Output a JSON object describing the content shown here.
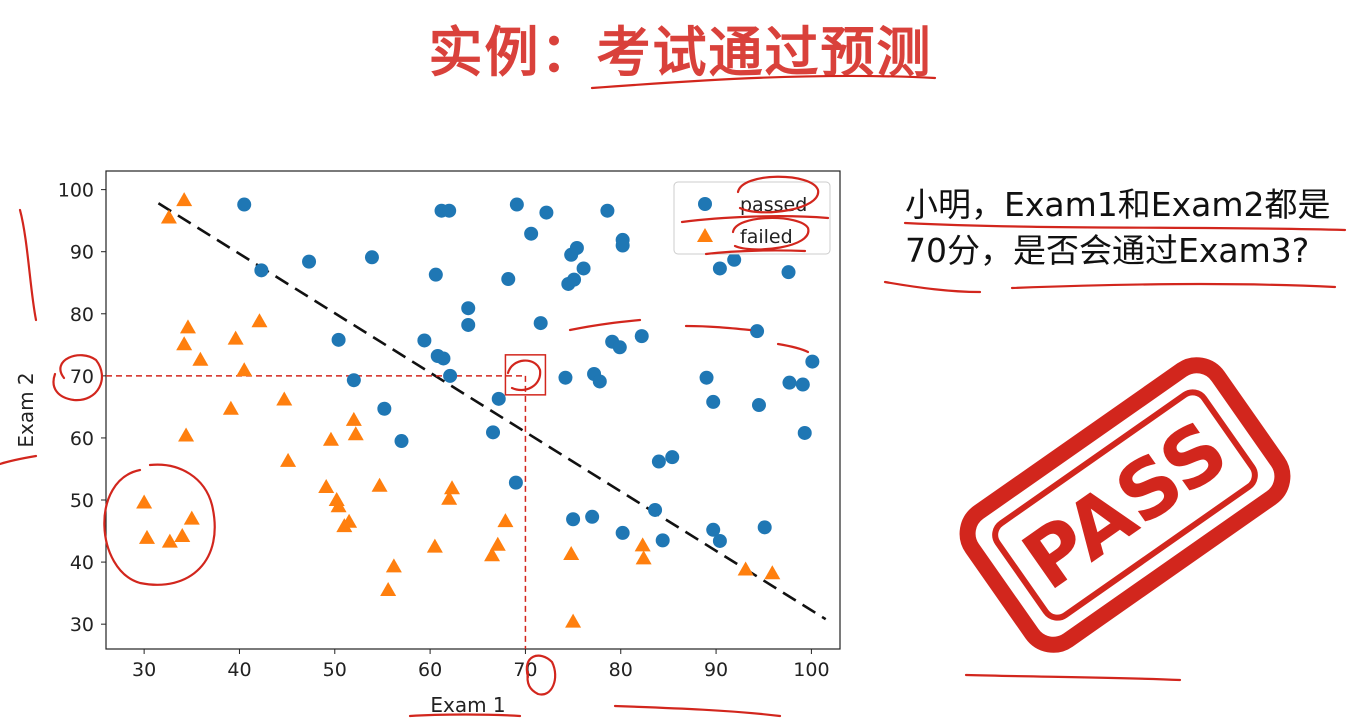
{
  "slide": {
    "title": "实例：考试通过预测",
    "question": "小明，Exam1和Exam2都是70分，是否会通过Exam3?",
    "stamp_text": "PASS",
    "colors": {
      "title": "#d9413b",
      "annotation": "#d2261d",
      "passed": "#1f77b4",
      "failed": "#ff7f0e"
    }
  },
  "chart_data": {
    "type": "scatter",
    "xlabel": "Exam 1",
    "ylabel": "Exam 2",
    "xlim": [
      26,
      103
    ],
    "ylim": [
      26,
      103
    ],
    "xticks": [
      30,
      40,
      50,
      60,
      70,
      80,
      90,
      100
    ],
    "yticks": [
      30,
      40,
      50,
      60,
      70,
      80,
      90,
      100
    ],
    "legend": {
      "placement": "top-right"
    },
    "grid": false,
    "decision_boundary": {
      "from": [
        31.5,
        97.8
      ],
      "to": [
        101.5,
        30.8
      ],
      "style": "dashed"
    },
    "highlight_point": {
      "x": 70,
      "y": 70
    },
    "series": [
      {
        "name": "passed",
        "marker": "circle",
        "points": [
          [
            40.5,
            97.6
          ],
          [
            42.3,
            87.0
          ],
          [
            47.3,
            88.4
          ],
          [
            50.4,
            75.8
          ],
          [
            52.0,
            69.3
          ],
          [
            53.9,
            89.1
          ],
          [
            55.2,
            64.7
          ],
          [
            57.0,
            59.5
          ],
          [
            59.4,
            75.7
          ],
          [
            60.6,
            86.3
          ],
          [
            60.8,
            73.2
          ],
          [
            61.2,
            96.6
          ],
          [
            61.4,
            72.8
          ],
          [
            62.0,
            96.6
          ],
          [
            62.1,
            70.0
          ],
          [
            64.0,
            78.2
          ],
          [
            64.0,
            80.9
          ],
          [
            66.6,
            60.9
          ],
          [
            67.2,
            66.3
          ],
          [
            68.2,
            85.6
          ],
          [
            69.0,
            52.8
          ],
          [
            69.1,
            97.6
          ],
          [
            70.6,
            92.9
          ],
          [
            71.6,
            78.5
          ],
          [
            72.2,
            96.3
          ],
          [
            74.2,
            69.7
          ],
          [
            74.5,
            84.8
          ],
          [
            74.8,
            89.5
          ],
          [
            75.0,
            46.9
          ],
          [
            75.1,
            85.5
          ],
          [
            75.4,
            90.6
          ],
          [
            76.1,
            87.3
          ],
          [
            77.0,
            47.3
          ],
          [
            77.2,
            70.3
          ],
          [
            77.8,
            69.1
          ],
          [
            78.6,
            96.6
          ],
          [
            79.1,
            75.5
          ],
          [
            79.9,
            74.6
          ],
          [
            80.2,
            91.9
          ],
          [
            80.2,
            91.0
          ],
          [
            80.2,
            44.7
          ],
          [
            82.2,
            76.4
          ],
          [
            83.6,
            48.4
          ],
          [
            84.0,
            56.2
          ],
          [
            84.4,
            43.5
          ],
          [
            85.4,
            56.9
          ],
          [
            89.0,
            69.7
          ],
          [
            89.7,
            45.2
          ],
          [
            89.7,
            65.8
          ],
          [
            90.4,
            87.3
          ],
          [
            90.4,
            43.4
          ],
          [
            91.9,
            88.7
          ],
          [
            94.3,
            77.2
          ],
          [
            94.5,
            65.3
          ],
          [
            95.1,
            45.6
          ],
          [
            97.6,
            86.7
          ],
          [
            97.7,
            68.9
          ],
          [
            99.1,
            68.6
          ],
          [
            99.3,
            60.8
          ],
          [
            100.1,
            72.3
          ]
        ]
      },
      {
        "name": "failed",
        "marker": "triangle",
        "points": [
          [
            30.0,
            49.6
          ],
          [
            30.3,
            43.9
          ],
          [
            32.6,
            95.5
          ],
          [
            32.7,
            43.3
          ],
          [
            34.0,
            44.2
          ],
          [
            34.2,
            98.3
          ],
          [
            34.2,
            75.1
          ],
          [
            34.4,
            60.4
          ],
          [
            34.6,
            77.8
          ],
          [
            35.0,
            47.0
          ],
          [
            35.9,
            72.6
          ],
          [
            39.1,
            64.7
          ],
          [
            39.6,
            76.0
          ],
          [
            40.5,
            70.9
          ],
          [
            42.1,
            78.8
          ],
          [
            44.7,
            66.2
          ],
          [
            45.1,
            56.3
          ],
          [
            49.1,
            52.1
          ],
          [
            49.6,
            59.7
          ],
          [
            50.2,
            50.0
          ],
          [
            50.4,
            49.0
          ],
          [
            51.0,
            45.8
          ],
          [
            51.5,
            46.5
          ],
          [
            52.0,
            62.9
          ],
          [
            52.2,
            60.6
          ],
          [
            54.7,
            52.3
          ],
          [
            55.6,
            35.5
          ],
          [
            56.2,
            39.3
          ],
          [
            60.5,
            42.5
          ],
          [
            62.0,
            50.2
          ],
          [
            62.3,
            51.9
          ],
          [
            66.5,
            41.1
          ],
          [
            67.1,
            42.8
          ],
          [
            67.9,
            46.6
          ],
          [
            74.8,
            41.3
          ],
          [
            75.0,
            30.4
          ],
          [
            82.3,
            42.7
          ],
          [
            82.4,
            40.6
          ],
          [
            93.1,
            38.8
          ],
          [
            95.9,
            38.2
          ]
        ]
      }
    ]
  }
}
